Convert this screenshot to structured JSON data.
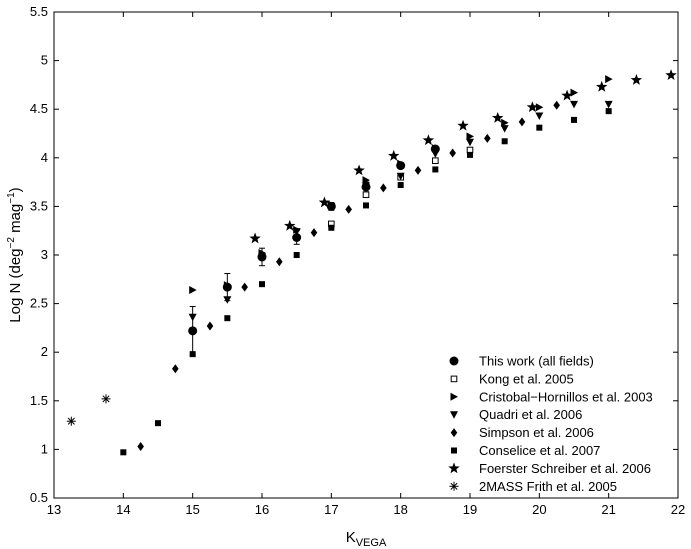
{
  "chart_data": {
    "type": "scatter",
    "title": "",
    "xlabel": "K",
    "xlabel_subscript": "VEGA",
    "ylabel": "Log N (deg",
    "ylabel_sup1": "−2",
    "ylabel_mid": " mag",
    "ylabel_sup2": "−1",
    "ylabel_end": ")",
    "xlim": [
      13,
      22
    ],
    "ylim": [
      0.5,
      5.5
    ],
    "xticks": [
      13,
      14,
      15,
      16,
      17,
      18,
      19,
      20,
      21,
      22
    ],
    "yticks": [
      0.5,
      1,
      1.5,
      2,
      2.5,
      3,
      3.5,
      4,
      4.5,
      5,
      5.5
    ],
    "xtick_labels": [
      "13",
      "14",
      "15",
      "16",
      "17",
      "18",
      "19",
      "20",
      "21",
      "22"
    ],
    "ytick_labels": [
      "0.5",
      "1",
      "1.5",
      "2",
      "2.5",
      "3",
      "3.5",
      "4",
      "4.5",
      "5",
      "5.5"
    ],
    "grid": false,
    "legend_position": "bottom-right",
    "series": [
      {
        "name": "This work (all fields)",
        "marker": "circle-filled",
        "x": [
          15.0,
          15.5,
          16.0,
          16.5,
          17.0,
          17.5,
          18.0,
          18.5
        ],
        "y": [
          2.22,
          2.67,
          2.98,
          3.18,
          3.5,
          3.7,
          3.92,
          4.09
        ],
        "yerr": [
          0.25,
          0.14,
          0.09,
          0.07,
          0.04,
          0.05,
          0.03,
          0.03
        ]
      },
      {
        "name": "Kong et al. 2005",
        "marker": "square-open",
        "x": [
          17.0,
          17.5,
          18.0,
          18.5,
          19.0
        ],
        "y": [
          3.32,
          3.62,
          3.8,
          3.97,
          4.08
        ]
      },
      {
        "name": "Cristobal−Hornillos et al. 2003",
        "marker": "triangle-right",
        "x": [
          15.0,
          15.5,
          16.0,
          16.5,
          17.0,
          17.5,
          18.0,
          18.5,
          19.0,
          19.5,
          20.0,
          20.5,
          21.0
        ],
        "y": [
          2.64,
          2.69,
          3.02,
          3.26,
          3.52,
          3.77,
          3.94,
          4.1,
          4.22,
          4.36,
          4.52,
          4.67,
          4.81
        ]
      },
      {
        "name": "Quadri et al. 2006",
        "marker": "triangle-down",
        "x": [
          15.0,
          15.5,
          16.0,
          16.5,
          17.0,
          17.5,
          18.0,
          18.5,
          19.0,
          19.5,
          20.0,
          20.5,
          21.0
        ],
        "y": [
          2.36,
          2.54,
          2.98,
          3.24,
          3.5,
          3.71,
          3.81,
          4.04,
          4.16,
          4.3,
          4.43,
          4.55,
          4.55
        ]
      },
      {
        "name": "Simpson et al. 2006",
        "marker": "diamond",
        "x": [
          14.25,
          14.75,
          15.25,
          15.75,
          16.25,
          16.75,
          17.25,
          17.75,
          18.25,
          18.75,
          19.25,
          19.75,
          20.25
        ],
        "y": [
          1.03,
          1.83,
          2.27,
          2.67,
          2.93,
          3.23,
          3.47,
          3.69,
          3.87,
          4.05,
          4.2,
          4.37,
          4.54
        ]
      },
      {
        "name": "Conselice et al. 2007",
        "marker": "square-filled",
        "x": [
          14.0,
          14.5,
          15.0,
          15.5,
          16.0,
          16.5,
          17.0,
          17.5,
          18.0,
          18.5,
          19.0,
          19.5,
          20.0,
          20.5,
          21.0
        ],
        "y": [
          0.97,
          1.27,
          1.98,
          2.35,
          2.7,
          3.0,
          3.28,
          3.51,
          3.72,
          3.88,
          4.03,
          4.17,
          4.31,
          4.39,
          4.48
        ]
      },
      {
        "name": "Foerster Schreiber et al. 2006",
        "marker": "star",
        "x": [
          15.9,
          16.4,
          16.9,
          17.4,
          17.9,
          18.4,
          18.9,
          19.4,
          19.9,
          20.4,
          20.9,
          21.4,
          21.9
        ],
        "y": [
          3.17,
          3.3,
          3.54,
          3.87,
          4.02,
          4.18,
          4.33,
          4.41,
          4.52,
          4.64,
          4.73,
          4.8,
          4.85
        ]
      },
      {
        "name": "2MASS Frith et al. 2005",
        "marker": "asterisk",
        "x": [
          13.25,
          13.75
        ],
        "y": [
          1.29,
          1.52
        ]
      }
    ]
  }
}
